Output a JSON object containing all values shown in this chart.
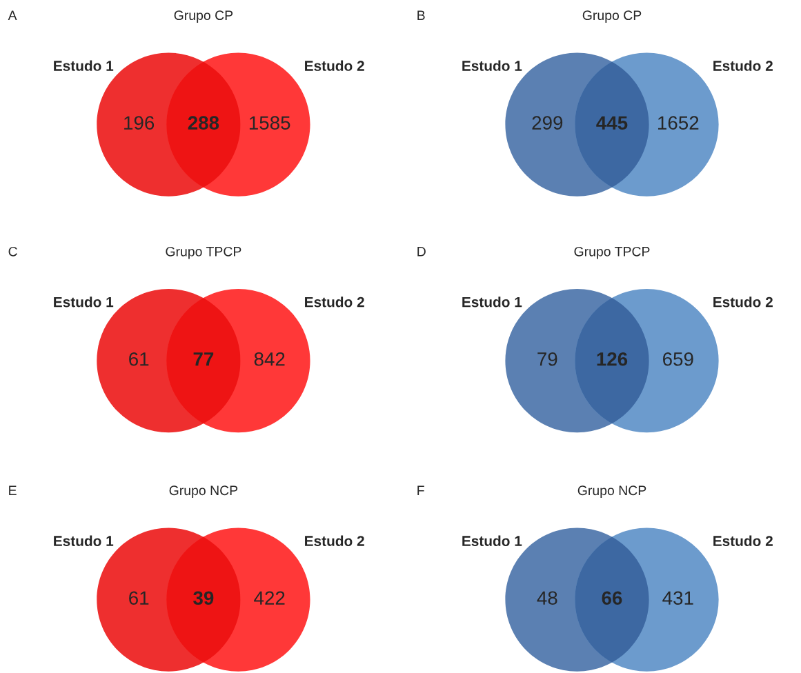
{
  "chart_data": [
    {
      "type": "other",
      "title": "Grupo CP",
      "annotations": [
        "A"
      ],
      "categories": [
        "Estudo 1",
        null,
        "Estudo 2"
      ],
      "values": [
        196,
        288,
        1585
      ],
      "data_labels": true,
      "colors": [
        "#ee2f2f",
        "#ee1414",
        "#ff3838"
      ]
    },
    {
      "type": "other",
      "title": "Grupo CP",
      "annotations": [
        "B"
      ],
      "categories": [
        "Estudo 1",
        null,
        "Estudo 2"
      ],
      "values": [
        299,
        445,
        1652
      ],
      "data_labels": true,
      "colors": [
        "#5b80b2",
        "#3d68a2",
        "#6c9bcd"
      ]
    },
    {
      "type": "other",
      "title": "Grupo TPCP",
      "annotations": [
        "C"
      ],
      "categories": [
        "Estudo 1",
        null,
        "Estudo 2"
      ],
      "values": [
        61,
        77,
        842
      ],
      "data_labels": true,
      "colors": [
        "#ee2f2f",
        "#ee1414",
        "#ff3838"
      ]
    },
    {
      "type": "other",
      "title": "Grupo TPCP",
      "annotations": [
        "D"
      ],
      "categories": [
        "Estudo 1",
        null,
        "Estudo 2"
      ],
      "values": [
        79,
        126,
        659
      ],
      "data_labels": true,
      "colors": [
        "#5b80b2",
        "#3d68a2",
        "#6c9bcd"
      ]
    },
    {
      "type": "other",
      "title": "Grupo NCP",
      "annotations": [
        "E"
      ],
      "categories": [
        "Estudo 1",
        null,
        "Estudo 2"
      ],
      "values": [
        61,
        39,
        422
      ],
      "data_labels": true,
      "colors": [
        "#ee2f2f",
        "#ee1414",
        "#ff3838"
      ]
    },
    {
      "type": "other",
      "title": "Grupo NCP",
      "annotations": [
        "F"
      ],
      "categories": [
        "Estudo 1",
        null,
        "Estudo 2"
      ],
      "values": [
        48,
        66,
        431
      ],
      "data_labels": true,
      "colors": [
        "#5b80b2",
        "#3d68a2",
        "#6c9bcd"
      ]
    }
  ]
}
